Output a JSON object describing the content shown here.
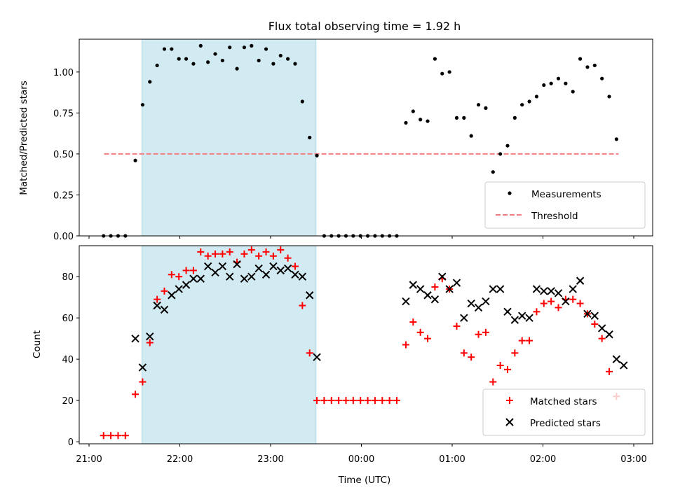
{
  "title": "Flux total observing time = 1.92 h",
  "xlabel": "Time (UTC)",
  "x_ticks": [
    "21:00",
    "22:00",
    "23:00",
    "00:00",
    "01:00",
    "02:00",
    "03:00"
  ],
  "colors": {
    "measurements": "#000000",
    "threshold": "#f08080",
    "matched": "#ff0000",
    "predicted": "#000000",
    "highlight": "#add8e6"
  },
  "chart_data": [
    {
      "type": "scatter",
      "ylabel": "Matched/Predicted stars",
      "y_ticks": [
        "0.00",
        "0.25",
        "0.50",
        "0.75",
        "1.00"
      ],
      "ylim": [
        0,
        1.2
      ],
      "x_units": "hours since 21:00 UTC",
      "highlight_span": [
        "21:35",
        "23:30"
      ],
      "threshold": 0.5,
      "threshold_span": [
        "21:10",
        "02:50"
      ],
      "legend": {
        "placement": "lower-right",
        "entries": [
          "Measurements",
          "Threshold"
        ]
      },
      "series": [
        {
          "name": "Measurements",
          "points": [
            [
              0.16,
              0
            ],
            [
              0.24,
              0
            ],
            [
              0.32,
              0
            ],
            [
              0.4,
              0
            ],
            [
              0.51,
              0.46
            ],
            [
              0.59,
              0.8
            ],
            [
              0.67,
              0.94
            ],
            [
              0.75,
              1.04
            ],
            [
              0.83,
              1.14
            ],
            [
              0.91,
              1.14
            ],
            [
              0.99,
              1.08
            ],
            [
              1.07,
              1.08
            ],
            [
              1.15,
              1.05
            ],
            [
              1.23,
              1.16
            ],
            [
              1.31,
              1.06
            ],
            [
              1.39,
              1.11
            ],
            [
              1.47,
              1.07
            ],
            [
              1.55,
              1.15
            ],
            [
              1.63,
              1.02
            ],
            [
              1.71,
              1.15
            ],
            [
              1.79,
              1.16
            ],
            [
              1.87,
              1.07
            ],
            [
              1.95,
              1.14
            ],
            [
              2.03,
              1.05
            ],
            [
              2.11,
              1.1
            ],
            [
              2.19,
              1.08
            ],
            [
              2.27,
              1.05
            ],
            [
              2.35,
              0.82
            ],
            [
              2.43,
              0.6
            ],
            [
              2.51,
              0.49
            ],
            [
              2.59,
              0
            ],
            [
              2.67,
              0
            ],
            [
              2.75,
              0
            ],
            [
              2.83,
              0
            ],
            [
              2.91,
              0
            ],
            [
              2.99,
              0
            ],
            [
              3.07,
              0
            ],
            [
              3.15,
              0
            ],
            [
              3.23,
              0
            ],
            [
              3.31,
              0
            ],
            [
              3.39,
              0
            ],
            [
              3.49,
              0.69
            ],
            [
              3.57,
              0.76
            ],
            [
              3.65,
              0.71
            ],
            [
              3.73,
              0.7
            ],
            [
              3.81,
              1.08
            ],
            [
              3.89,
              0.99
            ],
            [
              3.97,
              1.0
            ],
            [
              4.05,
              0.72
            ],
            [
              4.13,
              0.72
            ],
            [
              4.21,
              0.61
            ],
            [
              4.29,
              0.8
            ],
            [
              4.37,
              0.78
            ],
            [
              4.45,
              0.39
            ],
            [
              4.53,
              0.5
            ],
            [
              4.61,
              0.55
            ],
            [
              4.69,
              0.72
            ],
            [
              4.77,
              0.8
            ],
            [
              4.85,
              0.82
            ],
            [
              4.93,
              0.85
            ],
            [
              5.01,
              0.92
            ],
            [
              5.09,
              0.93
            ],
            [
              5.17,
              0.96
            ],
            [
              5.25,
              0.93
            ],
            [
              5.33,
              0.88
            ],
            [
              5.41,
              1.08
            ],
            [
              5.49,
              1.03
            ],
            [
              5.57,
              1.04
            ],
            [
              5.65,
              0.96
            ],
            [
              5.73,
              0.85
            ],
            [
              5.81,
              0.59
            ]
          ]
        }
      ]
    },
    {
      "type": "scatter",
      "ylabel": "Count",
      "y_ticks": [
        "0",
        "20",
        "40",
        "60",
        "80"
      ],
      "ylim": [
        -1,
        95
      ],
      "x_units": "hours since 21:00 UTC",
      "highlight_span": [
        "21:35",
        "23:30"
      ],
      "legend": {
        "placement": "lower-right",
        "entries": [
          "Matched stars",
          "Predicted stars"
        ]
      },
      "series": [
        {
          "name": "Matched stars",
          "points": [
            [
              0.16,
              3
            ],
            [
              0.24,
              3
            ],
            [
              0.32,
              3
            ],
            [
              0.4,
              3
            ],
            [
              0.51,
              23
            ],
            [
              0.59,
              29
            ],
            [
              0.67,
              48
            ],
            [
              0.75,
              69
            ],
            [
              0.83,
              73
            ],
            [
              0.91,
              81
            ],
            [
              0.99,
              80
            ],
            [
              1.07,
              83
            ],
            [
              1.15,
              83
            ],
            [
              1.23,
              92
            ],
            [
              1.31,
              90
            ],
            [
              1.39,
              91
            ],
            [
              1.47,
              91
            ],
            [
              1.55,
              92
            ],
            [
              1.63,
              87
            ],
            [
              1.71,
              91
            ],
            [
              1.79,
              93
            ],
            [
              1.87,
              90
            ],
            [
              1.95,
              92
            ],
            [
              2.03,
              90
            ],
            [
              2.11,
              93
            ],
            [
              2.19,
              89
            ],
            [
              2.27,
              85
            ],
            [
              2.35,
              66
            ],
            [
              2.43,
              43
            ],
            [
              2.51,
              20
            ],
            [
              2.59,
              20
            ],
            [
              2.67,
              20
            ],
            [
              2.75,
              20
            ],
            [
              2.83,
              20
            ],
            [
              2.91,
              20
            ],
            [
              2.99,
              20
            ],
            [
              3.07,
              20
            ],
            [
              3.15,
              20
            ],
            [
              3.23,
              20
            ],
            [
              3.31,
              20
            ],
            [
              3.39,
              20
            ],
            [
              3.49,
              47
            ],
            [
              3.57,
              58
            ],
            [
              3.65,
              53
            ],
            [
              3.73,
              50
            ],
            [
              3.81,
              75
            ],
            [
              3.89,
              79
            ],
            [
              3.97,
              74
            ],
            [
              4.05,
              56
            ],
            [
              4.13,
              43
            ],
            [
              4.21,
              41
            ],
            [
              4.29,
              52
            ],
            [
              4.37,
              53
            ],
            [
              4.45,
              29
            ],
            [
              4.53,
              37
            ],
            [
              4.61,
              35
            ],
            [
              4.69,
              43
            ],
            [
              4.77,
              49
            ],
            [
              4.85,
              49
            ],
            [
              4.93,
              63
            ],
            [
              5.01,
              67
            ],
            [
              5.09,
              68
            ],
            [
              5.17,
              65
            ],
            [
              5.25,
              69
            ],
            [
              5.33,
              69
            ],
            [
              5.41,
              67
            ],
            [
              5.49,
              62
            ],
            [
              5.57,
              57
            ],
            [
              5.65,
              50
            ],
            [
              5.73,
              34
            ],
            [
              5.81,
              22
            ]
          ]
        },
        {
          "name": "Predicted stars",
          "points": [
            [
              0.51,
              50
            ],
            [
              0.59,
              36
            ],
            [
              0.67,
              51
            ],
            [
              0.75,
              66
            ],
            [
              0.83,
              64
            ],
            [
              0.91,
              71
            ],
            [
              0.99,
              74
            ],
            [
              1.07,
              76
            ],
            [
              1.15,
              79
            ],
            [
              1.23,
              79
            ],
            [
              1.31,
              85
            ],
            [
              1.39,
              82
            ],
            [
              1.47,
              85
            ],
            [
              1.55,
              80
            ],
            [
              1.63,
              86
            ],
            [
              1.71,
              79
            ],
            [
              1.79,
              80
            ],
            [
              1.87,
              84
            ],
            [
              1.95,
              81
            ],
            [
              2.03,
              85
            ],
            [
              2.11,
              83
            ],
            [
              2.19,
              84
            ],
            [
              2.27,
              81
            ],
            [
              2.35,
              80
            ],
            [
              2.43,
              71
            ],
            [
              2.51,
              41
            ],
            [
              3.49,
              68
            ],
            [
              3.57,
              76
            ],
            [
              3.65,
              74
            ],
            [
              3.73,
              71
            ],
            [
              3.81,
              69
            ],
            [
              3.89,
              80
            ],
            [
              3.97,
              74
            ],
            [
              4.05,
              77
            ],
            [
              4.13,
              60
            ],
            [
              4.21,
              67
            ],
            [
              4.29,
              65
            ],
            [
              4.37,
              68
            ],
            [
              4.45,
              74
            ],
            [
              4.53,
              74
            ],
            [
              4.61,
              63
            ],
            [
              4.69,
              59
            ],
            [
              4.77,
              61
            ],
            [
              4.85,
              60
            ],
            [
              4.93,
              74
            ],
            [
              5.01,
              73
            ],
            [
              5.09,
              73
            ],
            [
              5.17,
              72
            ],
            [
              5.25,
              68
            ],
            [
              5.33,
              74
            ],
            [
              5.41,
              78
            ],
            [
              5.49,
              62
            ],
            [
              5.57,
              61
            ],
            [
              5.65,
              55
            ],
            [
              5.73,
              52
            ],
            [
              5.81,
              40
            ],
            [
              5.89,
              37
            ]
          ]
        }
      ]
    }
  ]
}
